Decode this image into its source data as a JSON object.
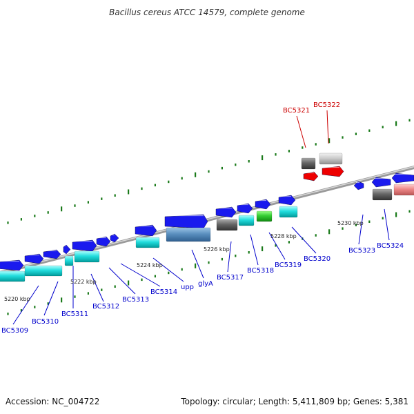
{
  "title": "Bacillus cereus ATCC 14579, complete genome",
  "footer": {
    "accession": "Accession: NC_004722",
    "summary": "Topology: circular; Length: 5,411,809 bp; Genes: 5,381"
  },
  "colors": {
    "label_blue": "#0000cc",
    "label_red": "#cc0000",
    "backbone": "#888888",
    "dots": "#1a7a1a"
  },
  "scale_labels": [
    "5220 kbp",
    "5222 kbp",
    "5224 kbp",
    "5226 kbp",
    "5228 kbp",
    "5230 kbp"
  ],
  "genes": [
    {
      "name": "BC5309",
      "color": "blue"
    },
    {
      "name": "BC5310",
      "color": "blue"
    },
    {
      "name": "BC5311",
      "color": "blue"
    },
    {
      "name": "BC5312",
      "color": "blue"
    },
    {
      "name": "BC5313",
      "color": "blue"
    },
    {
      "name": "BC5314",
      "color": "blue"
    },
    {
      "name": "upp",
      "color": "blue"
    },
    {
      "name": "glyA",
      "color": "blue"
    },
    {
      "name": "BC5317",
      "color": "blue"
    },
    {
      "name": "BC5318",
      "color": "blue"
    },
    {
      "name": "BC5319",
      "color": "blue"
    },
    {
      "name": "BC5320",
      "color": "blue"
    },
    {
      "name": "BC5321",
      "color": "red"
    },
    {
      "name": "BC5322",
      "color": "red"
    },
    {
      "name": "BC5323",
      "color": "blue"
    },
    {
      "name": "BC5324",
      "color": "blue"
    }
  ]
}
